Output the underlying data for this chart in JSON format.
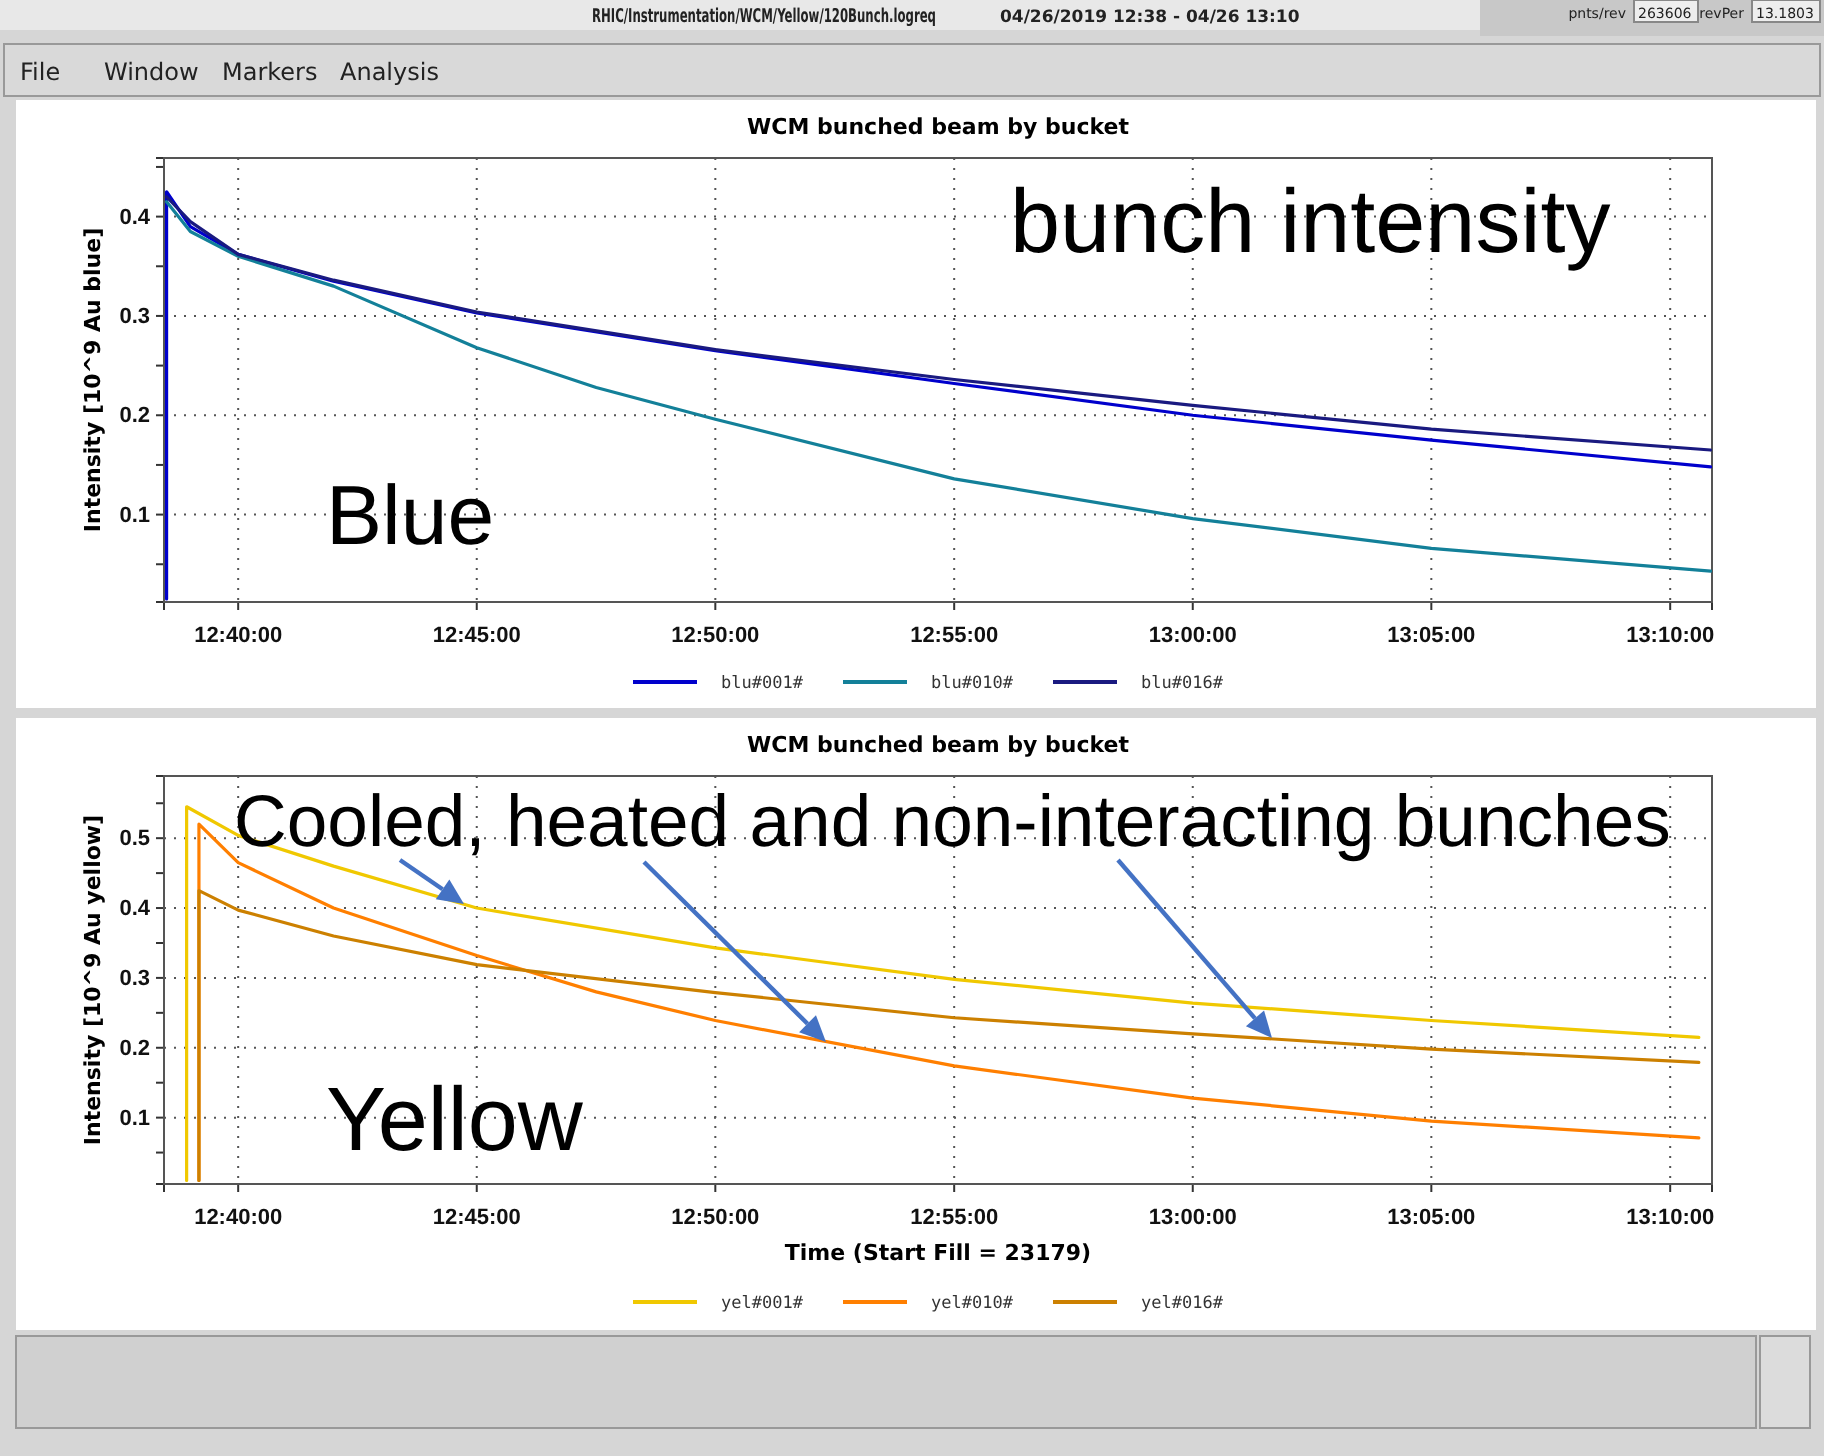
{
  "chart_data": [
    {
      "type": "line",
      "title": "WCM bunched beam by bucket",
      "ylabel": "Intensity [10^9 Au blue]",
      "annotations": [
        "RHIC/Instrumentation/WCM/Yellow/120Bunch.logreq",
        "04/26/2019 12:38 - 04/26 13:10",
        "File",
        "Window",
        "Markers",
        "Analysis",
        "pnts/rev",
        "263606",
        "revPer",
        "13.1803",
        "bunch intensity",
        "Blue"
      ],
      "xlim": [
        12.6408,
        13.1813
      ],
      "xticks": [
        {
          "value": 12.6667,
          "label": "12:40:00"
        },
        {
          "value": 12.75,
          "label": "12:45:00"
        },
        {
          "value": 12.8333,
          "label": "12:50:00"
        },
        {
          "value": 12.9167,
          "label": "12:55:00"
        },
        {
          "value": 13,
          "label": "13:00:00"
        },
        {
          "value": 13.0833,
          "label": "13:05:00"
        },
        {
          "value": 13.1667,
          "label": "13:10:00"
        }
      ],
      "ylim": [
        0.012,
        0.459
      ],
      "yticks": [
        {
          "value": 0.05,
          "label": null
        },
        0.1,
        {
          "value": 0.15,
          "label": null
        },
        0.2,
        {
          "value": 0.25,
          "label": null
        },
        0.3,
        {
          "value": 0.35,
          "label": null
        },
        0.4,
        {
          "value": 0.45,
          "label": null
        }
      ],
      "grid": true,
      "legend": "bottom",
      "line_style": "solid",
      "marker": "none",
      "series": [
        {
          "name": "blu#001#",
          "color": "#0000cc",
          "x": [
            12.6417,
            12.6417,
            12.65,
            12.6667,
            12.7,
            12.75,
            12.8333,
            12.9167,
            13,
            13.0833,
            13.1808
          ],
          "values": [
            0.015,
            0.425,
            0.39,
            0.362,
            0.335,
            0.303,
            0.265,
            0.232,
            0.2,
            0.175,
            0.148
          ]
        },
        {
          "name": "blu#010#",
          "color": "#138099",
          "x": [
            12.6417,
            12.65,
            12.6667,
            12.7,
            12.75,
            12.7917,
            12.8333,
            12.9167,
            13,
            13.0833,
            13.1808
          ],
          "values": [
            0.415,
            0.385,
            0.36,
            0.33,
            0.268,
            0.228,
            0.196,
            0.136,
            0.096,
            0.066,
            0.043
          ]
        },
        {
          "name": "blu#016#",
          "color": "#1a1a80",
          "x": [
            12.6417,
            12.65,
            12.6667,
            12.7,
            12.75,
            12.8333,
            12.9167,
            13,
            13.0833,
            13.1808
          ],
          "values": [
            0.42,
            0.395,
            0.362,
            0.336,
            0.304,
            0.266,
            0.236,
            0.21,
            0.186,
            0.165
          ]
        }
      ]
    },
    {
      "type": "line",
      "title": "WCM bunched beam by bucket",
      "xlabel": "Time (Start Fill = 23179)",
      "ylabel": "Intensity [10^9 Au yellow]",
      "annotations": [
        "Cooled, heated and non-interacting bunches",
        "Yellow"
      ],
      "xlim": [
        12.6408,
        13.1813
      ],
      "xticks": [
        {
          "value": 12.6667,
          "label": "12:40:00"
        },
        {
          "value": 12.75,
          "label": "12:45:00"
        },
        {
          "value": 12.8333,
          "label": "12:50:00"
        },
        {
          "value": 12.9167,
          "label": "12:55:00"
        },
        {
          "value": 13,
          "label": "13:00:00"
        },
        {
          "value": 13.0833,
          "label": "13:05:00"
        },
        {
          "value": 13.1667,
          "label": "13:10:00"
        }
      ],
      "ylim": [
        0.005,
        0.589
      ],
      "yticks": [
        {
          "value": 0.05,
          "label": null
        },
        0.1,
        {
          "value": 0.15,
          "label": null
        },
        0.2,
        {
          "value": 0.25,
          "label": null
        },
        0.3,
        {
          "value": 0.35,
          "label": null
        },
        0.4,
        {
          "value": 0.45,
          "label": null
        },
        0.5,
        {
          "value": 0.55,
          "label": null
        }
      ],
      "grid": true,
      "legend": "bottom",
      "line_style": "solid",
      "marker": "none",
      "series": [
        {
          "name": "yel#001#",
          "color": "#f0c800",
          "x": [
            12.6487,
            12.6487,
            12.6667,
            12.7,
            12.75,
            12.8333,
            12.9167,
            13,
            13.0833,
            13.1767
          ],
          "values": [
            0.01,
            0.545,
            0.504,
            0.46,
            0.4,
            0.343,
            0.298,
            0.264,
            0.239,
            0.215
          ]
        },
        {
          "name": "yel#010#",
          "color": "#ff7f00",
          "x": [
            12.653,
            12.653,
            12.6667,
            12.7,
            12.75,
            12.7917,
            12.8333,
            12.9167,
            13,
            13.0833,
            13.1767
          ],
          "values": [
            0.01,
            0.52,
            0.465,
            0.4,
            0.332,
            0.28,
            0.239,
            0.174,
            0.128,
            0.095,
            0.071
          ]
        },
        {
          "name": "yel#016#",
          "color": "#cc8000",
          "x": [
            12.653,
            12.653,
            12.6667,
            12.7,
            12.75,
            12.8333,
            12.9167,
            13,
            13.0833,
            13.1767
          ],
          "values": [
            0.01,
            0.425,
            0.397,
            0.36,
            0.319,
            0.279,
            0.243,
            0.22,
            0.198,
            0.179
          ]
        }
      ]
    }
  ]
}
